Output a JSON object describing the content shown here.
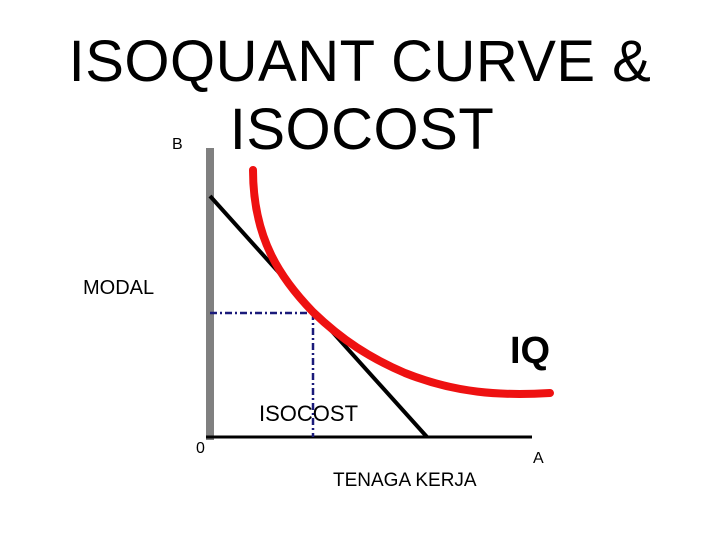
{
  "title_line1": "ISOQUANT CURVE &",
  "title_line2": "ISOCOST",
  "labels": {
    "b": "B",
    "modal": "MODAL",
    "iq": "IQ",
    "isocost": "ISOCOST",
    "origin": "0",
    "a": "A",
    "x_axis": "TENAGA KERJA"
  },
  "colors": {
    "isoquant": "#ee1111",
    "isocost": "#000000",
    "y_axis": "#808080",
    "x_axis": "#000000",
    "guides": "#1a1a7a"
  }
}
